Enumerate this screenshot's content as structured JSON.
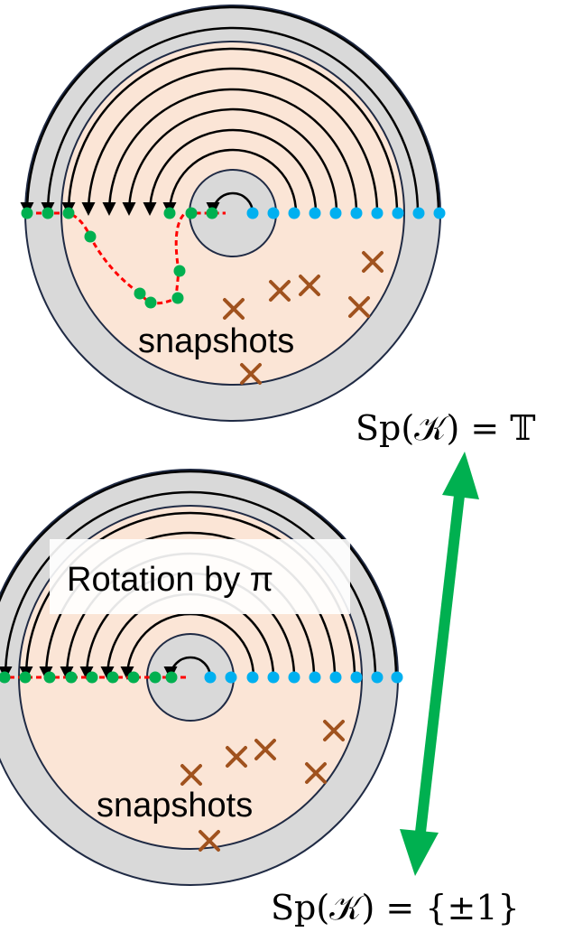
{
  "top_panel": {
    "snapshots_label": "snapshots",
    "spectrum_label": "Sp(𝒦) = 𝕋"
  },
  "bottom_panel": {
    "rotation_label": "Rotation by π",
    "snapshots_label": "snapshots",
    "spectrum_label": "Sp(𝒦) = {±1}"
  },
  "colors": {
    "outer_ring": "#d9d9d9",
    "disk_fill": "#fbe5d6",
    "ring_outline": "#1f2a44",
    "arc": "#000000",
    "trajectory_point": "#00b050",
    "fixed_point": "#00b0f0",
    "trajectory_path": "#ff0000",
    "snapshot_marker": "#a0521e",
    "arrow": "#00b050"
  }
}
